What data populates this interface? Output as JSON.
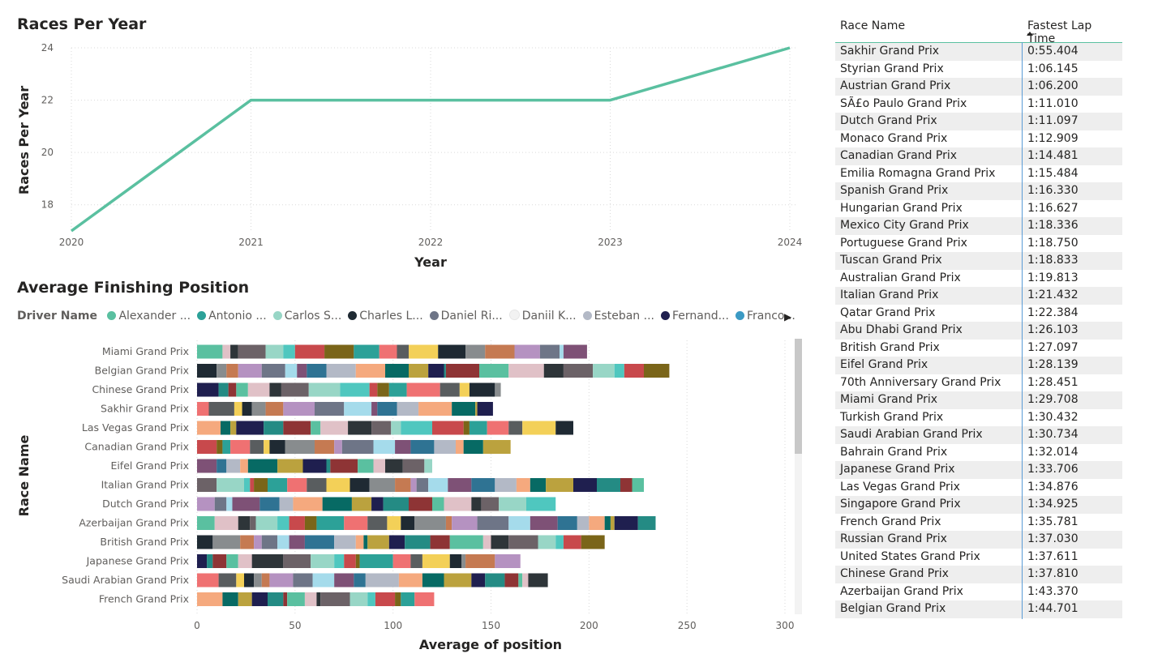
{
  "line_chart": {
    "title": "Races Per Year",
    "color": "#5ac0a0"
  },
  "bar_chart": {
    "title": "Average Finishing Position",
    "legend_label": "Driver Name",
    "legend_items": [
      {
        "label": "Alexander ...",
        "color": "#5ac0a0"
      },
      {
        "label": "Antonio ...",
        "color": "#2ca198"
      },
      {
        "label": "Carlos S...",
        "color": "#98d6c6"
      },
      {
        "label": "Charles L...",
        "color": "#1f2a33"
      },
      {
        "label": "Daniel Ri...",
        "color": "#6e7587"
      },
      {
        "label": "Daniil K...",
        "color": "#f2f2f2"
      },
      {
        "label": "Esteban ...",
        "color": "#b3b9c6"
      },
      {
        "label": "Fernand...",
        "color": "#1f1f4f"
      },
      {
        "label": "Franco ...",
        "color": "#3b9ac4"
      }
    ],
    "legend_next_icon": "chevron-right-icon"
  },
  "table": {
    "headers": [
      "Race Name",
      "Fastest Lap Time"
    ],
    "rows": [
      [
        "Sakhir Grand Prix",
        "0:55.404"
      ],
      [
        "Styrian Grand Prix",
        "1:06.145"
      ],
      [
        "Austrian Grand Prix",
        "1:06.200"
      ],
      [
        "SÃ£o Paulo Grand Prix",
        "1:11.010"
      ],
      [
        "Dutch Grand Prix",
        "1:11.097"
      ],
      [
        "Monaco Grand Prix",
        "1:12.909"
      ],
      [
        "Canadian Grand Prix",
        "1:14.481"
      ],
      [
        "Emilia Romagna Grand Prix",
        "1:15.484"
      ],
      [
        "Spanish Grand Prix",
        "1:16.330"
      ],
      [
        "Hungarian Grand Prix",
        "1:16.627"
      ],
      [
        "Mexico City Grand Prix",
        "1:18.336"
      ],
      [
        "Portuguese Grand Prix",
        "1:18.750"
      ],
      [
        "Tuscan Grand Prix",
        "1:18.833"
      ],
      [
        "Australian Grand Prix",
        "1:19.813"
      ],
      [
        "Italian Grand Prix",
        "1:21.432"
      ],
      [
        "Qatar Grand Prix",
        "1:22.384"
      ],
      [
        "Abu Dhabi Grand Prix",
        "1:26.103"
      ],
      [
        "British Grand Prix",
        "1:27.097"
      ],
      [
        "Eifel Grand Prix",
        "1:28.139"
      ],
      [
        "70th Anniversary Grand Prix",
        "1:28.451"
      ],
      [
        "Miami Grand Prix",
        "1:29.708"
      ],
      [
        "Turkish Grand Prix",
        "1:30.432"
      ],
      [
        "Saudi Arabian Grand Prix",
        "1:30.734"
      ],
      [
        "Bahrain Grand Prix",
        "1:32.014"
      ],
      [
        "Japanese Grand Prix",
        "1:33.706"
      ],
      [
        "Las Vegas Grand Prix",
        "1:34.876"
      ],
      [
        "Singapore Grand Prix",
        "1:34.925"
      ],
      [
        "French Grand Prix",
        "1:35.781"
      ],
      [
        "Russian Grand Prix",
        "1:37.030"
      ],
      [
        "United States Grand Prix",
        "1:37.611"
      ],
      [
        "Chinese Grand Prix",
        "1:37.810"
      ],
      [
        "Azerbaijan Grand Prix",
        "1:43.370"
      ],
      [
        "Belgian Grand Prix",
        "1:44.701"
      ]
    ]
  },
  "chart_data": [
    {
      "type": "line",
      "title": "Races Per Year",
      "xlabel": "Year",
      "ylabel": "Races Per Year",
      "x": [
        2020,
        2021,
        2022,
        2023,
        2024
      ],
      "x_ticks": [
        "2020",
        "2021",
        "2022",
        "2023",
        "2024"
      ],
      "y_ticks": [
        "18",
        "20",
        "22",
        "24"
      ],
      "series": [
        {
          "values": [
            17,
            22,
            22,
            22,
            24
          ]
        }
      ],
      "ylim": [
        17,
        24
      ],
      "grid": true
    },
    {
      "type": "bar",
      "orientation": "horizontal",
      "stacked": true,
      "title": "Average Finishing Position",
      "xlabel": "Average of position",
      "ylabel": "Race Name",
      "legend_title": "Driver Name",
      "legend_position": "top",
      "x_ticks": [
        "0",
        "50",
        "100",
        "150",
        "200",
        "250",
        "300"
      ],
      "xlim": [
        0,
        300
      ],
      "grid": true,
      "categories": [
        "Miami Grand Prix",
        "Belgian Grand Prix",
        "Chinese Grand Prix",
        "Sakhir Grand Prix",
        "Las Vegas Grand Prix",
        "Canadian Grand Prix",
        "Eifel Grand Prix",
        "Italian Grand Prix",
        "Dutch Grand Prix",
        "Azerbaijan Grand Prix",
        "British Grand Prix",
        "Japanese Grand Prix",
        "Saudi Arabian Grand Prix",
        "French Grand Prix"
      ],
      "palette": [
        "#5ac0a0",
        "#98d6c6",
        "#2ca198",
        "#1f2a33",
        "#6e7587",
        "#b3b9c6",
        "#1f1f4f",
        "#e0c1c7",
        "#4fc7bf",
        "#ef7172",
        "#888c8e",
        "#a5dbeb",
        "#f5a97e",
        "#248b84",
        "#2e3539",
        "#c8494c",
        "#595d5f",
        "#c57a52",
        "#7e5176",
        "#076a64",
        "#8e3435",
        "#6c6267",
        "#7a6519",
        "#f3d058",
        "#b592c1",
        "#2f7393",
        "#bba23e"
      ],
      "segments": [
        [
          13,
          4,
          4,
          14,
          9,
          6,
          15,
          15,
          13,
          9,
          6,
          15,
          14,
          10,
          15,
          13,
          10,
          2,
          12
        ],
        [
          10,
          5,
          6,
          12,
          12,
          6,
          5,
          10,
          15,
          15,
          12,
          10,
          8,
          1,
          17,
          15,
          18,
          10,
          15,
          11,
          5,
          10,
          13
        ],
        [
          11,
          5,
          4,
          6,
          11,
          6,
          14,
          16,
          15,
          4,
          6,
          9,
          17,
          10,
          5,
          13,
          3
        ],
        [
          6,
          13,
          4,
          5,
          7,
          9,
          16,
          15,
          14,
          3,
          10,
          11,
          17,
          12,
          1,
          8
        ],
        [
          12,
          5,
          3,
          14,
          10,
          14,
          5,
          14,
          12,
          10,
          5,
          16,
          16,
          3,
          9,
          11,
          7,
          17,
          9
        ],
        [
          10,
          3,
          4,
          10,
          7,
          3,
          8,
          15,
          10,
          4,
          16,
          11,
          8,
          12,
          11,
          4,
          10,
          14
        ],
        [
          10,
          5,
          7,
          4,
          15,
          13,
          12,
          2,
          14,
          8,
          6,
          9,
          11,
          4
        ],
        [
          10,
          14,
          3,
          2,
          7,
          10,
          10,
          10,
          12,
          10,
          13,
          8,
          3,
          6,
          10,
          12,
          12,
          11,
          7,
          8,
          14,
          12,
          12,
          6,
          6
        ],
        [
          9,
          6,
          3,
          14,
          10,
          7,
          15,
          15,
          10,
          6,
          13,
          12,
          6,
          14,
          5,
          9,
          14,
          15
        ],
        [
          9,
          12,
          6,
          3,
          11,
          6,
          8,
          6,
          14,
          12,
          10,
          7,
          7,
          16,
          3,
          13,
          16,
          11,
          14,
          10,
          6,
          8,
          3,
          2,
          12,
          9
        ],
        [
          8,
          14,
          7,
          4,
          8,
          6,
          8,
          15,
          11,
          4,
          2,
          11,
          8,
          13,
          10,
          17,
          4,
          9,
          15,
          9,
          4,
          9,
          12
        ],
        [
          5,
          3,
          7,
          6,
          7,
          16,
          14,
          12,
          5,
          6,
          2,
          17,
          9,
          6,
          14,
          6,
          2,
          15,
          13
        ],
        [
          11,
          9,
          4,
          5,
          4,
          4,
          12,
          10,
          11,
          10,
          6,
          17,
          12,
          11,
          14,
          7,
          10,
          7,
          2,
          3,
          10
        ],
        [
          13,
          8,
          7,
          8,
          8,
          2,
          9,
          6,
          2,
          15,
          9,
          4,
          10,
          3,
          7,
          10
        ]
      ]
    }
  ]
}
